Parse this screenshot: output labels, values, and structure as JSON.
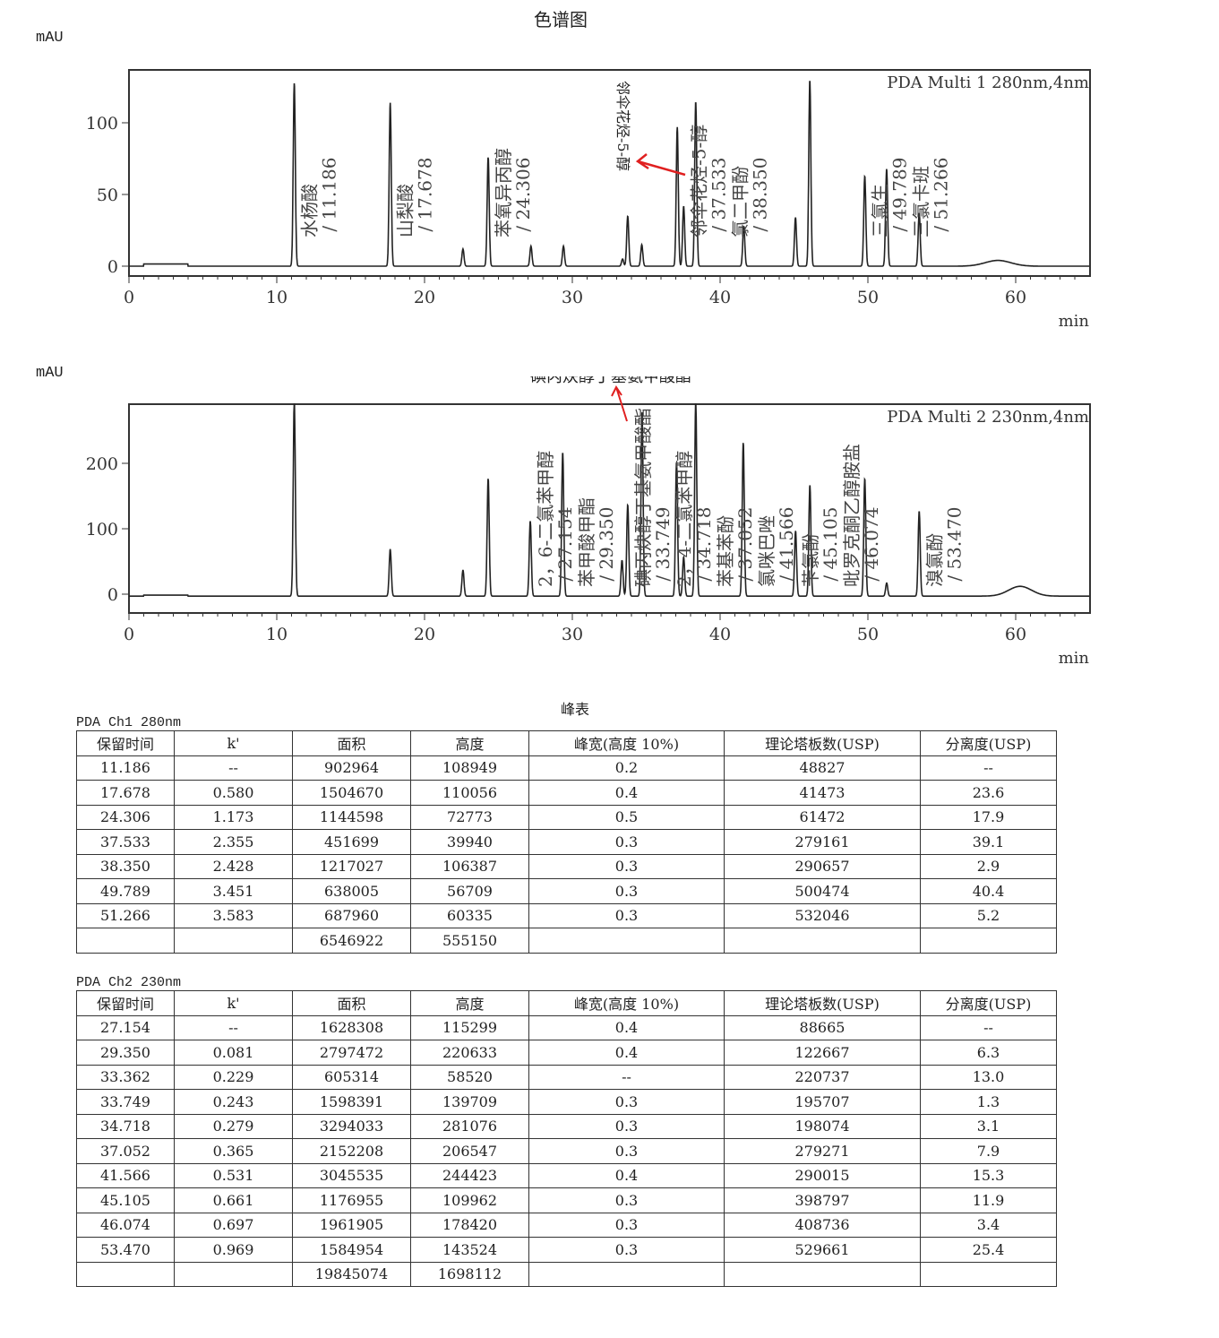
{
  "title": "色谱图",
  "table_title": "峰表",
  "chart_data": [
    {
      "type": "line",
      "ylabel": "mAU",
      "xlabel": "min",
      "legend": "PDA Multi 1 280nm,4nm",
      "xlim": [
        0,
        65
      ],
      "ylim": [
        -5,
        135
      ],
      "xticks": [
        0,
        10,
        20,
        30,
        40,
        50,
        60
      ],
      "yticks": [
        0,
        50,
        100
      ],
      "peaks": [
        [
          11.186,
          128
        ],
        [
          17.678,
          114
        ],
        [
          22.6,
          12
        ],
        [
          24.306,
          76
        ],
        [
          27.2,
          14
        ],
        [
          29.4,
          14
        ],
        [
          33.4,
          5
        ],
        [
          33.749,
          35
        ],
        [
          34.7,
          15
        ],
        [
          37.1,
          97
        ],
        [
          37.533,
          42
        ],
        [
          38.35,
          115
        ],
        [
          41.6,
          28
        ],
        [
          45.1,
          34
        ],
        [
          46.07,
          130
        ],
        [
          49.789,
          63
        ],
        [
          51.266,
          68
        ],
        [
          53.47,
          37
        ]
      ],
      "labels": [
        [
          11.186,
          "水杨酸 / 11.186"
        ],
        [
          17.678,
          "山梨酸 / 17.678"
        ],
        [
          24.306,
          "苯氧异丙醇 / 24.306"
        ],
        [
          37.533,
          "邻伞花烃-5-醇 / 37.533"
        ],
        [
          38.35,
          "氯二甲酚 / 38.350"
        ],
        [
          49.789,
          "三氯生 / 49.789"
        ],
        [
          51.266,
          "三氯卡班 / 51.266"
        ]
      ],
      "annotation": "邻伞花烃-5-醇"
    },
    {
      "type": "line",
      "ylabel": "mAU",
      "xlabel": "min",
      "legend": "PDA Multi 2 230nm,4nm",
      "xlim": [
        0,
        65
      ],
      "ylim": [
        -30,
        290
      ],
      "xticks": [
        0,
        10,
        20,
        30,
        40,
        50,
        60
      ],
      "yticks": [
        0,
        100,
        200
      ],
      "peaks": [
        [
          11.186,
          300
        ],
        [
          17.678,
          72
        ],
        [
          22.6,
          40
        ],
        [
          24.306,
          180
        ],
        [
          27.154,
          115
        ],
        [
          29.35,
          220
        ],
        [
          33.362,
          55
        ],
        [
          33.749,
          140
        ],
        [
          34.718,
          281
        ],
        [
          37.052,
          206
        ],
        [
          37.533,
          60
        ],
        [
          38.35,
          300
        ],
        [
          41.566,
          235
        ],
        [
          45.105,
          100
        ],
        [
          46.074,
          170
        ],
        [
          49.789,
          180
        ],
        [
          51.27,
          20
        ],
        [
          53.47,
          130
        ]
      ],
      "labels": [
        [
          27.154,
          "2，6-二氯苯甲醇 / 27.154"
        ],
        [
          29.35,
          "苯甲酸甲酯 / 29.350"
        ],
        [
          33.749,
          "碘丙炔醇丁基氨甲酸酯 / 33.749"
        ],
        [
          34.718,
          "2，4-二氯苯甲醇 / 34.718"
        ],
        [
          37.052,
          "苯基苯酚 / 37.052"
        ],
        [
          41.566,
          "氯咪巴唑 / 41.566"
        ],
        [
          45.105,
          "苄氯酚 / 45.105"
        ],
        [
          46.074,
          "吡罗克酮乙醇胺盐 / 46.074"
        ],
        [
          53.47,
          "溴氯酚 / 53.470"
        ]
      ],
      "annotation": "碘丙炔醇丁基氨甲酸酯"
    }
  ],
  "tables": [
    {
      "caption": "PDA Ch1 280nm",
      "headers": [
        "保留时间",
        "k'",
        "面积",
        "高度",
        "峰宽(高度 10%)",
        "理论塔板数(USP)",
        "分离度(USP)"
      ],
      "rows": [
        [
          "11.186",
          "--",
          "902964",
          "108949",
          "0.2",
          "48827",
          "--"
        ],
        [
          "17.678",
          "0.580",
          "1504670",
          "110056",
          "0.4",
          "41473",
          "23.6"
        ],
        [
          "24.306",
          "1.173",
          "1144598",
          "72773",
          "0.5",
          "61472",
          "17.9"
        ],
        [
          "37.533",
          "2.355",
          "451699",
          "39940",
          "0.3",
          "279161",
          "39.1"
        ],
        [
          "38.350",
          "2.428",
          "1217027",
          "106387",
          "0.3",
          "290657",
          "2.9"
        ],
        [
          "49.789",
          "3.451",
          "638005",
          "56709",
          "0.3",
          "500474",
          "40.4"
        ],
        [
          "51.266",
          "3.583",
          "687960",
          "60335",
          "0.3",
          "532046",
          "5.2"
        ],
        [
          "",
          "",
          "6546922",
          "555150",
          "",
          "",
          ""
        ]
      ]
    },
    {
      "caption": "PDA Ch2 230nm",
      "headers": [
        "保留时间",
        "k'",
        "面积",
        "高度",
        "峰宽(高度 10%)",
        "理论塔板数(USP)",
        "分离度(USP)"
      ],
      "rows": [
        [
          "27.154",
          "--",
          "1628308",
          "115299",
          "0.4",
          "88665",
          "--"
        ],
        [
          "29.350",
          "0.081",
          "2797472",
          "220633",
          "0.4",
          "122667",
          "6.3"
        ],
        [
          "33.362",
          "0.229",
          "605314",
          "58520",
          "--",
          "220737",
          "13.0"
        ],
        [
          "33.749",
          "0.243",
          "1598391",
          "139709",
          "0.3",
          "195707",
          "1.3"
        ],
        [
          "34.718",
          "0.279",
          "3294033",
          "281076",
          "0.3",
          "198074",
          "3.1"
        ],
        [
          "37.052",
          "0.365",
          "2152208",
          "206547",
          "0.3",
          "279271",
          "7.9"
        ],
        [
          "41.566",
          "0.531",
          "3045535",
          "244423",
          "0.4",
          "290015",
          "15.3"
        ],
        [
          "45.105",
          "0.661",
          "1176955",
          "109962",
          "0.3",
          "398797",
          "11.9"
        ],
        [
          "46.074",
          "0.697",
          "1961905",
          "178420",
          "0.3",
          "408736",
          "3.4"
        ],
        [
          "53.470",
          "0.969",
          "1584954",
          "143524",
          "0.3",
          "529661",
          "25.4"
        ],
        [
          "",
          "",
          "19845074",
          "1698112",
          "",
          "",
          ""
        ]
      ]
    }
  ]
}
